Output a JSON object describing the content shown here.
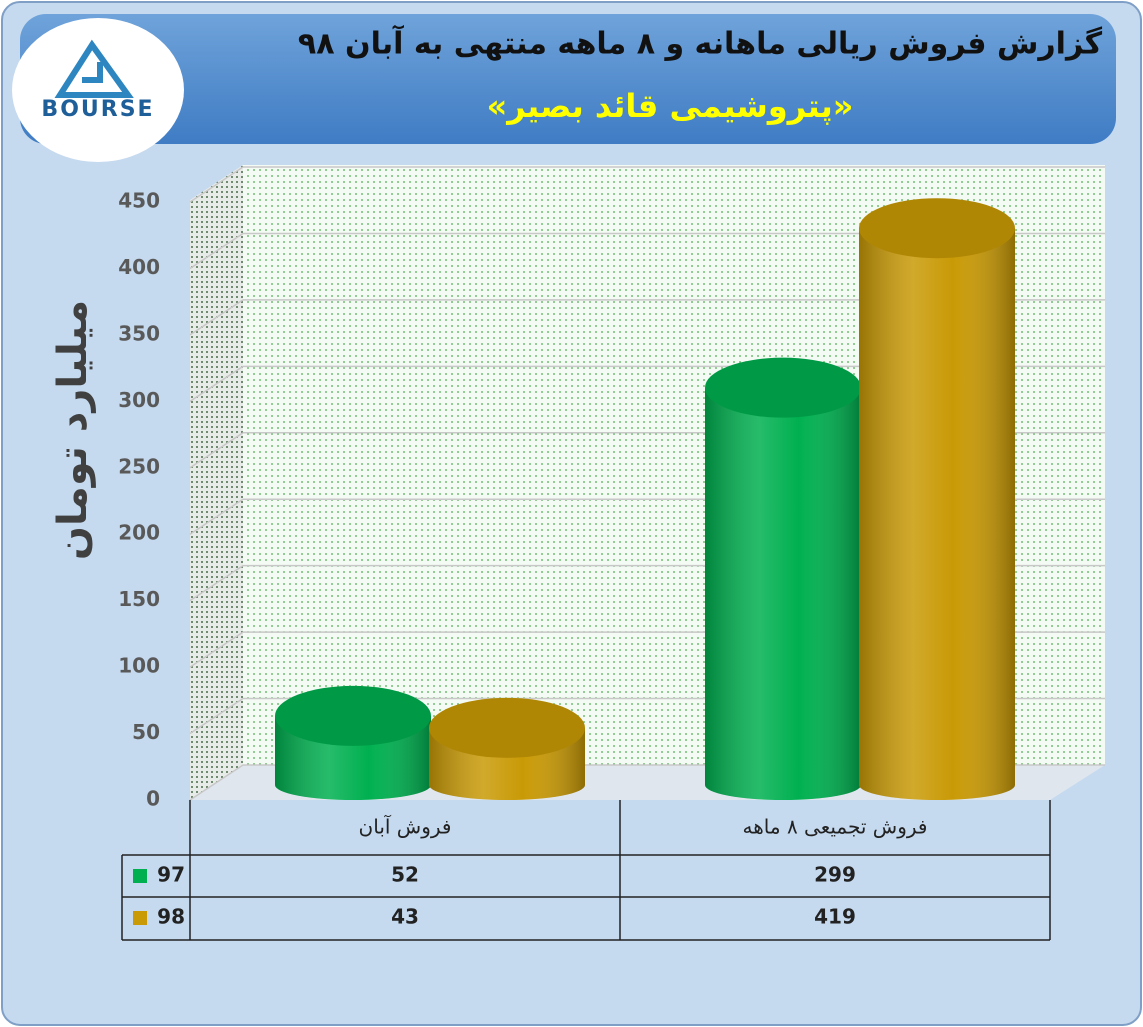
{
  "chart_data": {
    "type": "bar3d",
    "title": "گزارش فروش ریالی ماهانه و ٨ ماهه منتهی به آبان ٩٨",
    "subtitle": "«پتروشیمی قائد بصیر»",
    "logo_text": "BOURSE",
    "y_label": "میلیارد تومان",
    "categories": [
      "فروش آبان",
      "فروش تجمیعی ٨ ماهه"
    ],
    "series": [
      {
        "name": "97",
        "color": "#00b050",
        "values": [
          52,
          299
        ]
      },
      {
        "name": "98",
        "color": "#c99a06",
        "values": [
          43,
          419
        ]
      }
    ],
    "ylim": [
      0,
      450
    ],
    "yticks": [
      0,
      50,
      100,
      150,
      200,
      250,
      300,
      350,
      400,
      450
    ],
    "grid": true
  }
}
